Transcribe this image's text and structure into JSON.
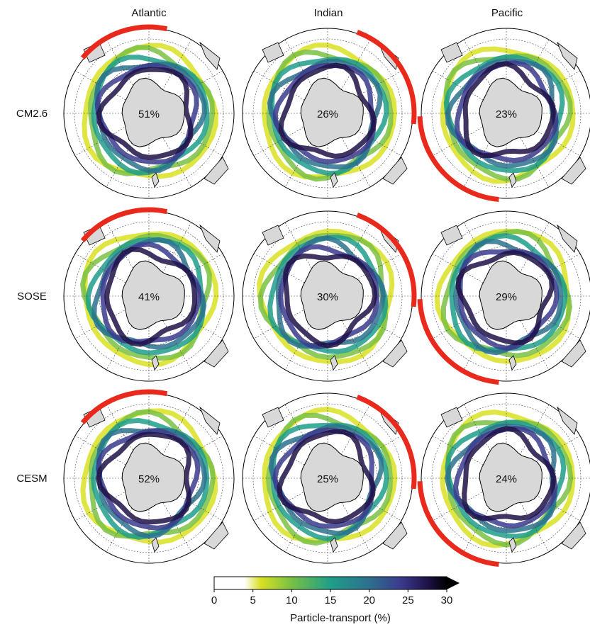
{
  "figure": {
    "columns": [
      "Atlantic",
      "Indian",
      "Pacific"
    ],
    "rows": [
      "CM2.6",
      "SOSE",
      "CESM"
    ],
    "percentages": [
      [
        "51%",
        "26%",
        "23%"
      ],
      [
        "41%",
        "30%",
        "29%"
      ],
      [
        "52%",
        "25%",
        "24%"
      ]
    ],
    "highlight_color": "#e8291c",
    "land_color": "#d8d8d8"
  },
  "colorbar": {
    "label": "Particle-transport (%)",
    "ticks": [
      "0",
      "5",
      "10",
      "15",
      "20",
      "25",
      "30"
    ],
    "range": [
      0,
      30
    ],
    "extend": "max",
    "colors": [
      "#ffffff",
      "#d9e021",
      "#7ac143",
      "#1f9e89",
      "#2c728e",
      "#3b3b8f",
      "#1d1147",
      "#000000"
    ]
  }
}
